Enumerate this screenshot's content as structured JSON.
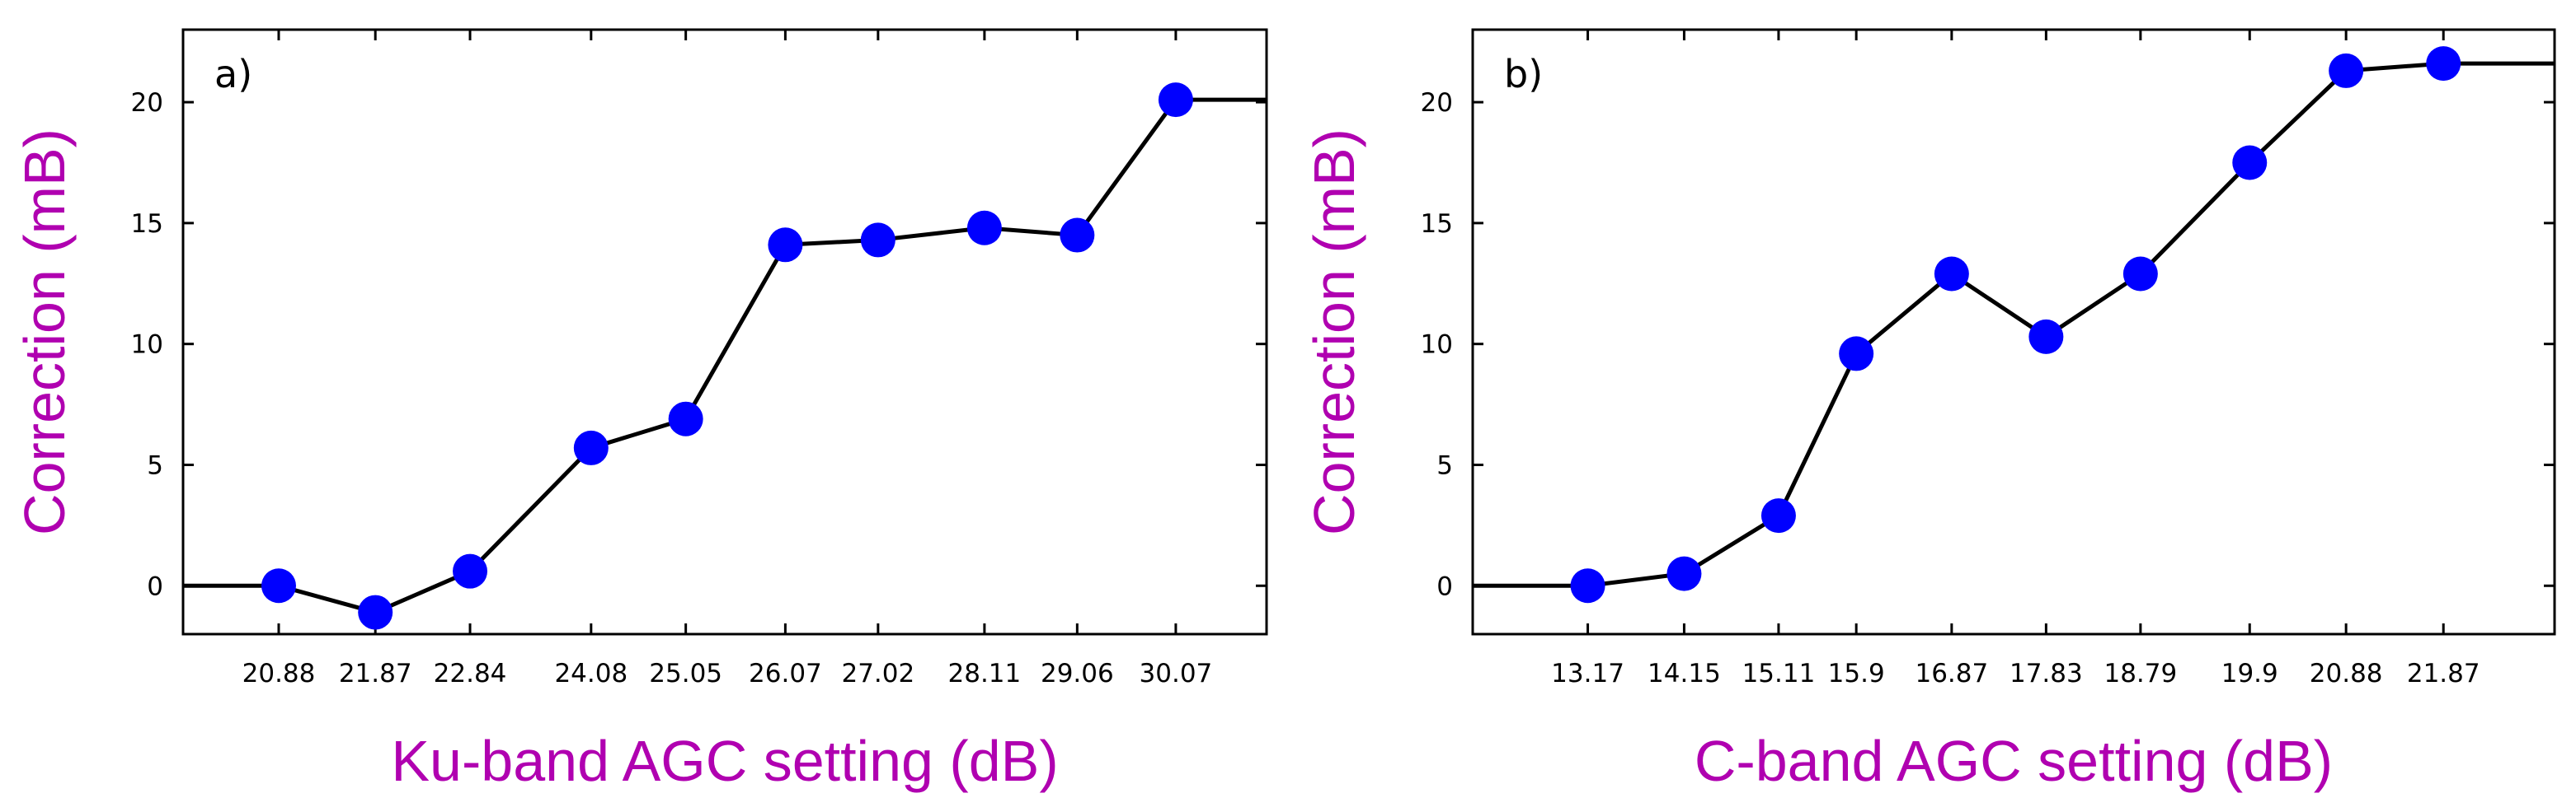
{
  "colors": {
    "label": "#b000b0",
    "marker": "#0000ff",
    "line": "#000000",
    "frame": "#000000"
  },
  "chart_data": [
    {
      "type": "line",
      "panel_label": "a)",
      "title": "",
      "xlabel": "Ku-band AGC setting (dB)",
      "ylabel": "Correction (mB)",
      "x": [
        20.88,
        21.87,
        22.84,
        24.08,
        25.05,
        26.07,
        27.02,
        28.11,
        29.06,
        30.07
      ],
      "x_tick_labels": [
        "20.88",
        "21.87",
        "22.84",
        "24.08",
        "25.05",
        "26.07",
        "27.02",
        "28.11",
        "29.06",
        "30.07"
      ],
      "values": [
        0,
        -1.1,
        0.6,
        5.7,
        6.9,
        14.1,
        14.3,
        14.8,
        14.5,
        20.1
      ],
      "line_extends": {
        "left": 0,
        "right": 20.1
      },
      "xlim": [
        19.9,
        31.0
      ],
      "ylim": [
        -2,
        23
      ],
      "y_ticks": [
        0,
        5,
        10,
        15,
        20
      ],
      "grid": false,
      "legend": "none"
    },
    {
      "type": "line",
      "panel_label": "b)",
      "title": "",
      "xlabel": "C-band AGC setting (dB)",
      "ylabel": "Correction (mB)",
      "x": [
        13.17,
        14.15,
        15.11,
        15.9,
        16.87,
        17.83,
        18.79,
        19.9,
        20.88,
        21.87
      ],
      "x_tick_labels": [
        "13.17",
        "14.15",
        "15.11",
        "15.9",
        "16.87",
        "17.83",
        "18.79",
        "19.9",
        "20.88",
        "21.87"
      ],
      "values": [
        0,
        0.5,
        2.9,
        9.6,
        12.9,
        10.3,
        12.9,
        17.5,
        21.3,
        21.6
      ],
      "line_extends": {
        "left": 0,
        "right": 21.6
      },
      "xlim": [
        12.0,
        23.0
      ],
      "ylim": [
        -2,
        23
      ],
      "y_ticks": [
        0,
        5,
        10,
        15,
        20
      ],
      "grid": false,
      "legend": "none"
    }
  ]
}
